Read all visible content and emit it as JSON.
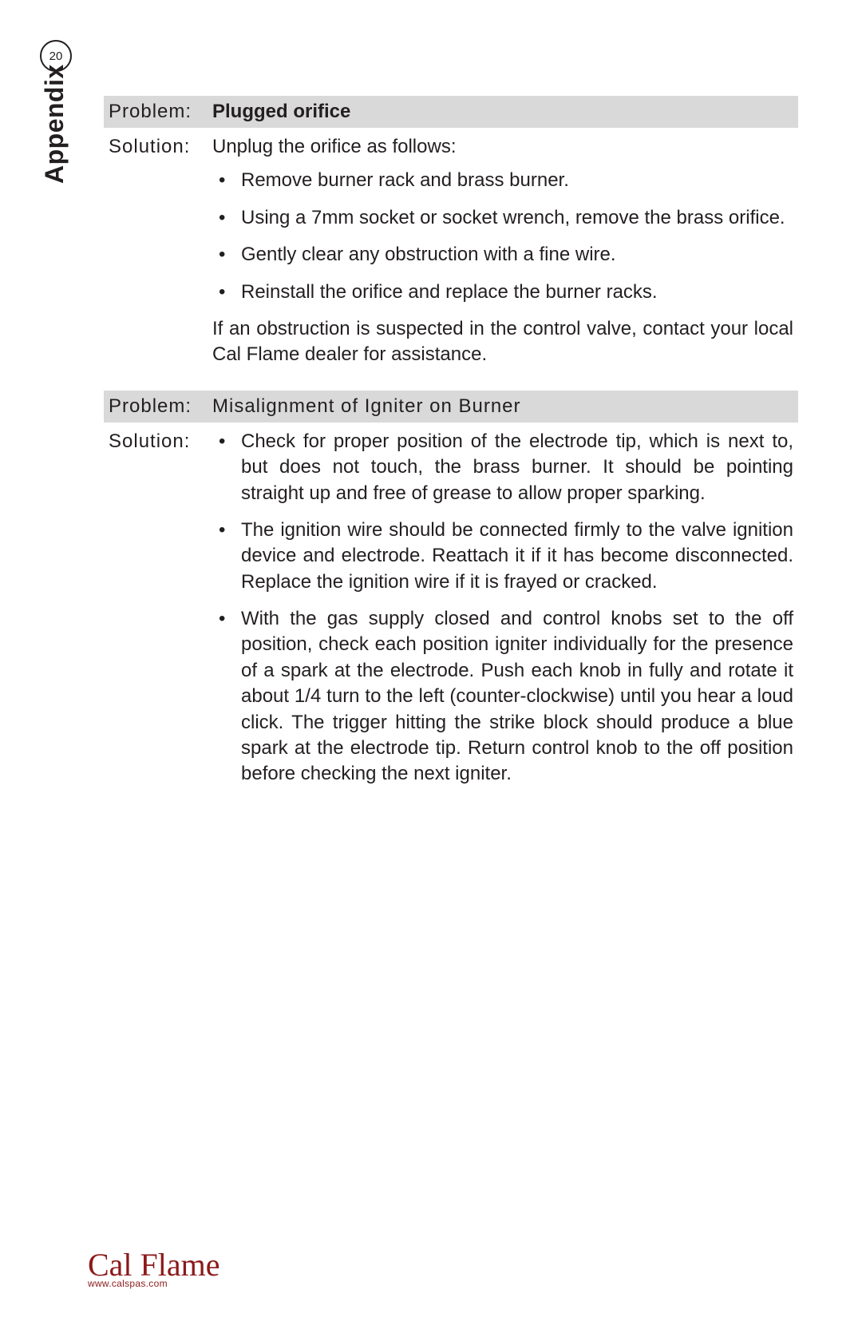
{
  "page": {
    "number": "20",
    "section": "Appendix",
    "background_color": "#ffffff",
    "text_color": "#231f20",
    "header_bg": "#d9d9d9",
    "brand_color": "#8b1a1a"
  },
  "labels": {
    "problem": "Problem:",
    "solution": "Solution:"
  },
  "sections": [
    {
      "problem_title": "Plugged orifice",
      "title_bold": true,
      "solution_intro": "Unplug the orifice as follows:",
      "bullets": [
        "Remove burner rack and brass burner.",
        "Using a 7mm socket or socket wrench, remove the brass orifice.",
        "Gently clear any obstruction with a fine wire.",
        "Reinstall the orifice and replace the burner racks."
      ],
      "solution_tail": "If an obstruction is suspected in the control valve, contact your local Cal Flame dealer for assistance."
    },
    {
      "problem_title": "Misalignment of Igniter on Burner",
      "title_bold": false,
      "solution_intro": "",
      "bullets": [
        "Check for proper position of the electrode tip, which is next to, but does not touch, the brass burner. It should be pointing straight up and free of grease to allow proper sparking.",
        "The ignition wire should be connected firmly to the valve ignition device and electrode. Reattach it if it has become disconnected. Replace the ignition wire if it is frayed or cracked.",
        "With the gas supply closed and control knobs set to the off position, check each position igniter individually for the presence of a spark at the electrode. Push each knob in fully and rotate it about 1/4 turn to the left (counter-clockwise) until you hear a loud click. The trigger hitting the strike block should produce a blue spark at the electrode tip. Return control knob to the off position before checking the next igniter."
      ],
      "solution_tail": ""
    }
  ],
  "footer": {
    "logo_text": "Cal Flame",
    "url": "www.calspas.com"
  }
}
